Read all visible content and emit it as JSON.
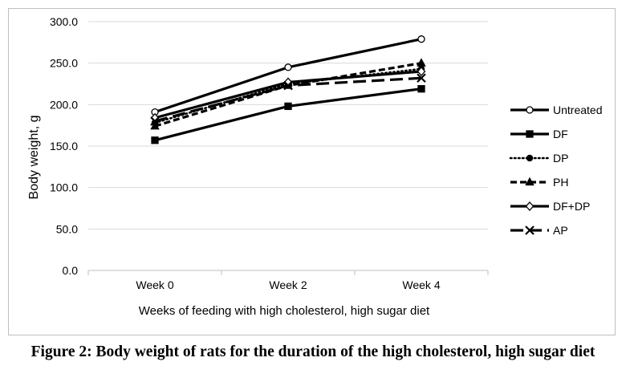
{
  "figure": {
    "caption": "Figure 2: Body weight of rats for the duration of the high cholesterol, high sugar diet"
  },
  "chart_data": {
    "type": "line",
    "xlabel": "Weeks of feeding with high cholesterol, high sugar diet",
    "ylabel": "Body weight, g",
    "categories": [
      "Week 0",
      "Week 2",
      "Week 4"
    ],
    "ylim": [
      0,
      300
    ],
    "yticks": [
      "0.0",
      "50.0",
      "100.0",
      "150.0",
      "200.0",
      "250.0",
      "300.0"
    ],
    "grid": true,
    "legend_position": "right",
    "series": [
      {
        "name": "Untreated",
        "values": [
          191,
          245,
          279
        ],
        "line": "solid",
        "marker": "circle-open"
      },
      {
        "name": "DF",
        "values": [
          157,
          198,
          219
        ],
        "line": "solid",
        "marker": "square-filled"
      },
      {
        "name": "DP",
        "values": [
          178,
          225,
          243
        ],
        "line": "dotted",
        "marker": "circle-filled"
      },
      {
        "name": "PH",
        "values": [
          174,
          223,
          250
        ],
        "line": "dashed",
        "marker": "triangle-filled"
      },
      {
        "name": "DF+DP",
        "values": [
          184,
          227,
          240
        ],
        "line": "solid",
        "marker": "diamond-open"
      },
      {
        "name": "AP",
        "values": [
          180,
          223,
          232
        ],
        "line": "longdash",
        "marker": "x"
      }
    ]
  }
}
